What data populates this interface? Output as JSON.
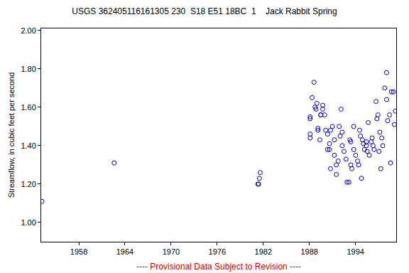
{
  "chart_data": {
    "type": "scatter",
    "title": "USGS 362405116161305 230  S18 E51 18BC  1    Jack Rabbit Spring",
    "y_label": "Streamflow, in cubic feet per second",
    "annotations": [
      "---- Provisional Data Subject to Revision ----"
    ],
    "series": [
      {
        "color": "#0000cc",
        "marker": "circle-open",
        "x": [
          1953.2,
          1962.6,
          1981.3,
          1981.4,
          1981.5,
          1981.6,
          1988.1,
          1988.1,
          1988.1,
          1988.1,
          1988.35,
          1988.6,
          1988.73,
          1988.86,
          1988.98,
          1989.11,
          1989.11,
          1989.36,
          1989.49,
          1989.49,
          1989.74,
          1989.74,
          1989.99,
          1990.12,
          1990.37,
          1990.37,
          1990.62,
          1990.62,
          1990.75,
          1990.75,
          1991.0,
          1991.25,
          1991.25,
          1991.5,
          1991.5,
          1991.75,
          1991.88,
          1992.01,
          1992.13,
          1992.26,
          1992.26,
          1992.51,
          1992.76,
          1992.89,
          1993.14,
          1993.27,
          1993.39,
          1993.39,
          1993.52,
          1993.77,
          1993.77,
          1994.02,
          1994.27,
          1994.4,
          1994.53,
          1994.65,
          1994.78,
          1994.9,
          1995.03,
          1995.16,
          1995.41,
          1995.41,
          1995.53,
          1995.66,
          1995.79,
          1996.04,
          1996.16,
          1996.29,
          1996.42,
          1996.67,
          1996.79,
          1996.92,
          1997.05,
          1997.17,
          1997.3,
          1997.42,
          1997.55,
          1997.8,
          1998.05,
          1998.05,
          1998.18,
          1998.43,
          1998.56,
          1998.68,
          1998.94,
          1999.06,
          1999.19
        ],
        "values": [
          1.11,
          1.31,
          1.2,
          1.2,
          1.23,
          1.26,
          1.55,
          1.54,
          1.46,
          1.44,
          1.65,
          1.73,
          1.6,
          1.59,
          1.62,
          1.49,
          1.48,
          1.43,
          1.56,
          1.56,
          1.61,
          1.59,
          1.56,
          1.48,
          1.46,
          1.38,
          1.41,
          1.38,
          1.28,
          1.48,
          1.5,
          1.43,
          1.35,
          1.3,
          1.25,
          1.32,
          1.5,
          1.45,
          1.59,
          1.47,
          1.4,
          1.37,
          1.33,
          1.21,
          1.21,
          1.43,
          1.42,
          1.3,
          1.28,
          1.5,
          1.38,
          1.35,
          1.32,
          1.3,
          1.48,
          1.45,
          1.23,
          1.43,
          1.41,
          1.38,
          1.42,
          1.4,
          1.37,
          1.52,
          1.35,
          1.42,
          1.44,
          1.4,
          1.38,
          1.63,
          1.54,
          1.56,
          1.37,
          1.47,
          1.28,
          1.44,
          1.4,
          1.7,
          1.78,
          1.64,
          1.53,
          1.56,
          1.31,
          1.68,
          1.68,
          1.51,
          1.58
        ]
      }
    ],
    "xlim": [
      1953.1,
      1999.3
    ],
    "xticks": [
      1958,
      1964,
      1970,
      1976,
      1982,
      1988,
      1994
    ],
    "ylim": [
      0.9,
      2.01
    ],
    "yticks": [
      {
        "value": 1.0,
        "label": "1.00"
      },
      {
        "value": 1.2,
        "label": "1.20"
      },
      {
        "value": 1.4,
        "label": "1.40"
      },
      {
        "value": 1.6,
        "label": "1.60"
      },
      {
        "value": 1.8,
        "label": "1.80"
      },
      {
        "value": 2.0,
        "label": "2.00"
      }
    ],
    "grid": false
  }
}
